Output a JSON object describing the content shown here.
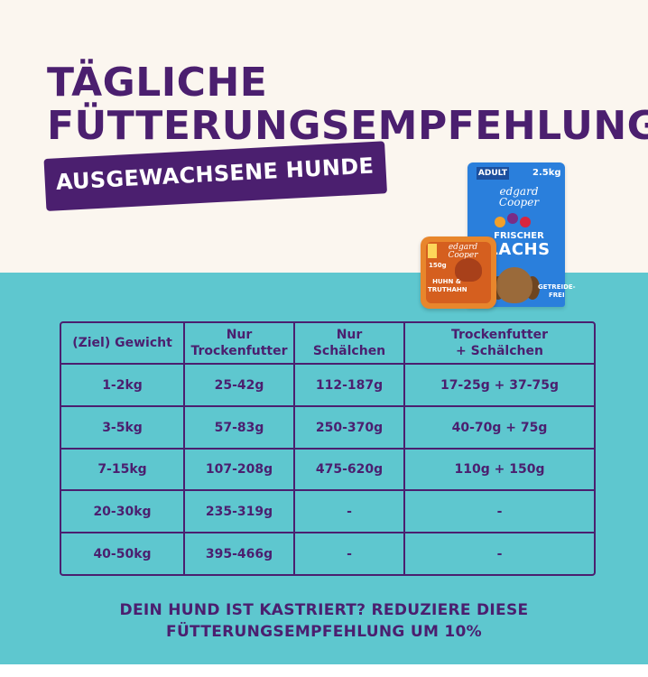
{
  "title": {
    "line1": "TÄGLICHE",
    "line2": "FÜTTERUNGSEMPFEHLUNG"
  },
  "banner": "AUSGEWACHSENE HUNDE",
  "product_bag": {
    "badge": "ADULT",
    "weight": "2.5kg",
    "brand_line1": "edgard",
    "brand_line2": "Cooper",
    "name_line1": "FRISCHER",
    "name_line2": "LACHS",
    "tag_line1": "GETREIDE-",
    "tag_line2": "FREI",
    "color": "#2a7fdc"
  },
  "product_tray": {
    "brand_line1": "edgard",
    "brand_line2": "Cooper",
    "weight": "150g",
    "name_line1": "HUHN &",
    "name_line2": "TRUTHAHN",
    "color": "#e8862c"
  },
  "table": {
    "headers": [
      {
        "line1": "(Ziel) Gewicht",
        "line2": ""
      },
      {
        "line1": "Nur",
        "line2": "Trockenfutter"
      },
      {
        "line1": "Nur",
        "line2": "Schälchen"
      },
      {
        "line1": "Trockenfutter",
        "line2": "+ Schälchen"
      }
    ],
    "rows": [
      [
        "1-2kg",
        "25-42g",
        "112-187g",
        "17-25g + 37-75g"
      ],
      [
        "3-5kg",
        "57-83g",
        "250-370g",
        "40-70g + 75g"
      ],
      [
        "7-15kg",
        "107-208g",
        "475-620g",
        "110g + 150g"
      ],
      [
        "20-30kg",
        "235-319g",
        "-",
        "-"
      ],
      [
        "40-50kg",
        "395-466g",
        "-",
        "-"
      ]
    ]
  },
  "note": {
    "line1": "DEIN HUND IST KASTRIERT? REDUZIERE DIESE",
    "line2": "FÜTTERUNGSEMPFEHLUNG UM 10%"
  },
  "colors": {
    "purple": "#4b1f6f",
    "teal": "#5ec7cf",
    "cream": "#fbf6ef"
  }
}
